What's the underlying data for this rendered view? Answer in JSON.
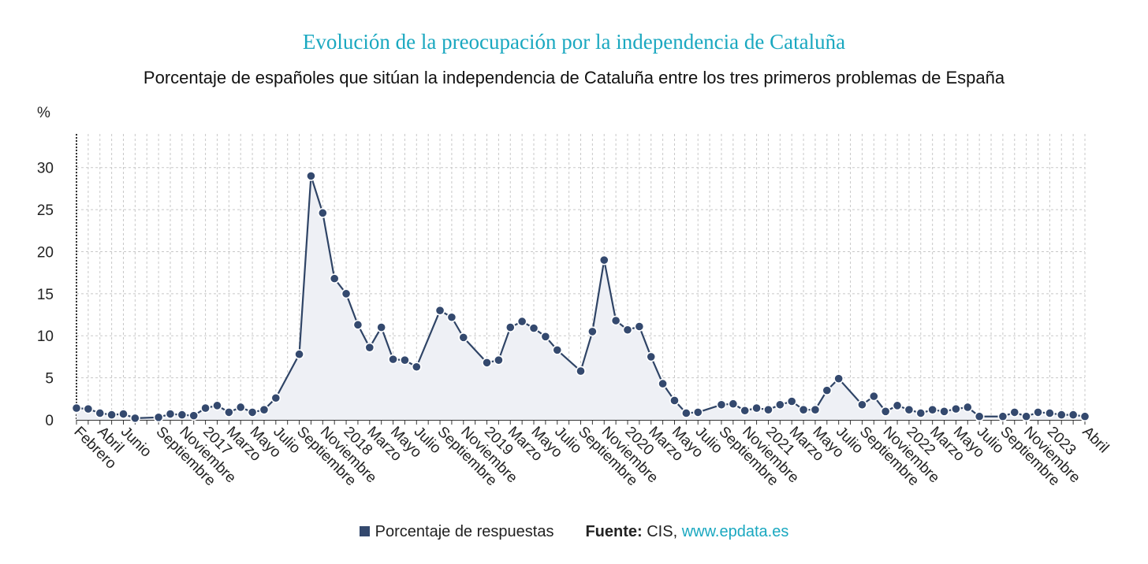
{
  "title": "Evolución de la preocupación por la independencia de Cataluña",
  "subtitle": "Porcentaje de españoles que sitúan la independencia de Cataluña entre los tres primeros problemas de España",
  "legend": {
    "label": "Porcentaje de respuestas"
  },
  "source": {
    "label": "Fuente:",
    "name": "CIS,",
    "link": "www.epdata.es"
  },
  "colors": {
    "line": "#2f4466",
    "marker": "#34496e",
    "area": "#eef0f5",
    "grid": "#c8c8c8",
    "title": "#1aa8c0",
    "axis": "#333333"
  },
  "chart_data": {
    "type": "line",
    "title": "Evolución de la preocupación por la independencia de Cataluña",
    "ylabel": "%",
    "ylim": [
      0,
      34
    ],
    "yticks": [
      0,
      5,
      10,
      15,
      20,
      25,
      30
    ],
    "grid": true,
    "series": [
      {
        "name": "Porcentaje de respuestas",
        "values": [
          1.4,
          1.3,
          0.8,
          0.6,
          0.7,
          0.2,
          null,
          0.3,
          0.7,
          0.6,
          0.5,
          1.4,
          1.7,
          0.9,
          1.5,
          0.9,
          1.2,
          2.6,
          null,
          7.8,
          29.0,
          24.6,
          16.8,
          15.0,
          11.3,
          8.6,
          11.0,
          7.2,
          7.1,
          6.3,
          null,
          13.0,
          12.2,
          9.8,
          null,
          6.8,
          7.1,
          11.0,
          11.7,
          10.9,
          9.9,
          8.3,
          null,
          5.8,
          10.5,
          19.0,
          11.8,
          10.7,
          11.1,
          7.5,
          4.3,
          2.3,
          0.8,
          0.9,
          null,
          1.8,
          1.9,
          1.1,
          1.4,
          1.2,
          1.8,
          2.2,
          1.2,
          1.2,
          3.5,
          4.9,
          null,
          1.8,
          2.8,
          1.0,
          1.7,
          1.2,
          0.8,
          1.2,
          1.0,
          1.3,
          1.5,
          0.4,
          null,
          0.4,
          0.9,
          0.4,
          0.9,
          0.8,
          0.6,
          0.6,
          0.4
        ]
      }
    ],
    "xtick_labels": [
      {
        "i": 0,
        "label": "Febrero"
      },
      {
        "i": 2,
        "label": "Abril"
      },
      {
        "i": 4,
        "label": "Junio"
      },
      {
        "i": 7,
        "label": "Septiembre"
      },
      {
        "i": 9,
        "label": "Noviembre"
      },
      {
        "i": 11,
        "label": "2017"
      },
      {
        "i": 13,
        "label": "Marzo"
      },
      {
        "i": 15,
        "label": "Mayo"
      },
      {
        "i": 17,
        "label": "Julio"
      },
      {
        "i": 19,
        "label": "Septiembre"
      },
      {
        "i": 21,
        "label": "Noviembre"
      },
      {
        "i": 23,
        "label": "2018"
      },
      {
        "i": 25,
        "label": "Marzo"
      },
      {
        "i": 27,
        "label": "Mayo"
      },
      {
        "i": 29,
        "label": "Julio"
      },
      {
        "i": 31,
        "label": "Septiembre"
      },
      {
        "i": 33,
        "label": "Noviembre"
      },
      {
        "i": 35,
        "label": "2019"
      },
      {
        "i": 37,
        "label": "Marzo"
      },
      {
        "i": 39,
        "label": "Mayo"
      },
      {
        "i": 41,
        "label": "Julio"
      },
      {
        "i": 43,
        "label": "Septiembre"
      },
      {
        "i": 45,
        "label": "Noviembre"
      },
      {
        "i": 47,
        "label": "2020"
      },
      {
        "i": 49,
        "label": "Marzo"
      },
      {
        "i": 51,
        "label": "Mayo"
      },
      {
        "i": 53,
        "label": "Julio"
      },
      {
        "i": 55,
        "label": "Septiembre"
      },
      {
        "i": 57,
        "label": "Noviembre"
      },
      {
        "i": 59,
        "label": "2021"
      },
      {
        "i": 61,
        "label": "Marzo"
      },
      {
        "i": 63,
        "label": "Mayo"
      },
      {
        "i": 65,
        "label": "Julio"
      },
      {
        "i": 67,
        "label": "Septiembre"
      },
      {
        "i": 69,
        "label": "Noviembre"
      },
      {
        "i": 71,
        "label": "2022"
      },
      {
        "i": 73,
        "label": "Marzo"
      },
      {
        "i": 75,
        "label": "Mayo"
      },
      {
        "i": 77,
        "label": "Julio"
      },
      {
        "i": 79,
        "label": "Septiembre"
      },
      {
        "i": 81,
        "label": "Noviembre"
      },
      {
        "i": 83,
        "label": "2023"
      },
      {
        "i": 86,
        "label": "Abril"
      }
    ]
  }
}
